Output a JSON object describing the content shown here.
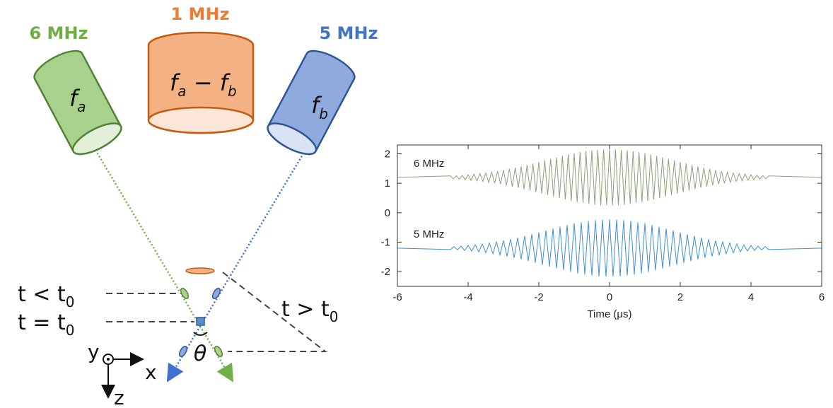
{
  "diagram": {
    "frequencies": {
      "a": "6 MHz",
      "diff": "1 MHz",
      "b": "5 MHz"
    },
    "transducers": {
      "a": {
        "symbol": "f",
        "sub": "a"
      },
      "diff": {
        "parts": [
          "f",
          "a",
          " − f",
          "b"
        ]
      },
      "b": {
        "symbol": "f",
        "sub": "b"
      }
    },
    "times": [
      {
        "text": "t < t",
        "sub": "0"
      },
      {
        "text": "t = t",
        "sub": "0"
      },
      {
        "text": "t > t",
        "sub": "0"
      }
    ],
    "angle": "θ",
    "axes": {
      "y": "y",
      "x": "x",
      "z": "z"
    }
  },
  "chart_data": {
    "type": "line",
    "xlabel": "Time (μs)",
    "xlim": [
      -6,
      6
    ],
    "xticks": [
      -6,
      -4,
      -2,
      0,
      2,
      4,
      6
    ],
    "ylim": [
      -2.5,
      2.3
    ],
    "yticks": [
      -2,
      -1,
      0,
      1,
      2
    ],
    "grid": false,
    "series": [
      {
        "name": "6 MHz",
        "color": "#8aa37a",
        "x": [
          -6,
          -4.5,
          -4.417,
          -4.333,
          -4.25,
          -4.167,
          -4.083,
          -4,
          -3.917,
          -3.833,
          -3.75,
          -3.667,
          -3.583,
          -3.5,
          -3.417,
          -3.333,
          -3.25,
          -3.167,
          -3.083,
          -3,
          -2.917,
          -2.833,
          -2.75,
          -2.667,
          -2.583,
          -2.5,
          -2.417,
          -2.333,
          -2.25,
          -2.167,
          -2.083,
          -2,
          -1.917,
          -1.833,
          -1.75,
          -1.667,
          -1.583,
          -1.5,
          -1.417,
          -1.333,
          -1.25,
          -1.167,
          -1.083,
          -1,
          -0.917,
          -0.833,
          -0.75,
          -0.667,
          -0.583,
          -0.5,
          -0.417,
          -0.333,
          -0.25,
          -0.167,
          -0.083,
          0,
          0.083,
          0.167,
          0.25,
          0.333,
          0.417,
          0.5,
          0.583,
          0.667,
          0.75,
          0.833,
          0.917,
          1,
          1.083,
          1.167,
          1.25,
          1.333,
          1.417,
          1.5,
          1.583,
          1.667,
          1.75,
          1.833,
          1.917,
          2,
          2.083,
          2.167,
          2.25,
          2.333,
          2.417,
          2.5,
          2.583,
          2.667,
          2.75,
          2.833,
          2.917,
          3,
          3.083,
          3.167,
          3.25,
          3.333,
          3.417,
          3.5,
          3.583,
          3.667,
          3.75,
          3.833,
          3.917,
          4,
          4.083,
          4.167,
          4.25,
          4.333,
          4.417,
          4.5,
          6
        ],
        "values": [
          1.2,
          1.25,
          1.15,
          1.26,
          1.14,
          1.27,
          1.12,
          1.29,
          1.1,
          1.31,
          1.08,
          1.33,
          1.06,
          1.35,
          1.03,
          1.38,
          1.0,
          1.41,
          0.97,
          1.45,
          0.93,
          1.49,
          0.89,
          1.53,
          0.85,
          1.57,
          0.8,
          1.62,
          0.75,
          1.67,
          0.7,
          1.72,
          0.65,
          1.78,
          0.6,
          1.83,
          0.55,
          1.88,
          0.5,
          1.93,
          0.45,
          1.98,
          0.4,
          2.02,
          0.36,
          2.06,
          0.33,
          2.09,
          0.3,
          2.12,
          0.27,
          2.13,
          0.26,
          2.15,
          0.25,
          2.15,
          0.25,
          2.15,
          0.26,
          2.13,
          0.27,
          2.12,
          0.3,
          2.09,
          0.33,
          2.06,
          0.36,
          2.02,
          0.4,
          1.98,
          0.45,
          1.93,
          0.5,
          1.88,
          0.55,
          1.83,
          0.6,
          1.78,
          0.65,
          1.72,
          0.7,
          1.67,
          0.75,
          1.62,
          0.8,
          1.57,
          0.85,
          1.53,
          0.89,
          1.49,
          0.93,
          1.45,
          0.97,
          1.41,
          1.0,
          1.38,
          1.03,
          1.35,
          1.06,
          1.33,
          1.08,
          1.31,
          1.1,
          1.29,
          1.12,
          1.27,
          1.14,
          1.26,
          1.15,
          1.25,
          1.2
        ]
      },
      {
        "name": "5 MHz",
        "color": "#3d8fd1",
        "x": [
          -6,
          -4.5,
          -4.4,
          -4.3,
          -4.2,
          -4.1,
          -4,
          -3.9,
          -3.8,
          -3.7,
          -3.6,
          -3.5,
          -3.4,
          -3.3,
          -3.2,
          -3.1,
          -3,
          -2.9,
          -2.8,
          -2.7,
          -2.6,
          -2.5,
          -2.4,
          -2.3,
          -2.2,
          -2.1,
          -2,
          -1.9,
          -1.8,
          -1.7,
          -1.6,
          -1.5,
          -1.4,
          -1.3,
          -1.2,
          -1.1,
          -1,
          -0.9,
          -0.8,
          -0.7,
          -0.6,
          -0.5,
          -0.4,
          -0.3,
          -0.2,
          -0.1,
          0,
          0.1,
          0.2,
          0.3,
          0.4,
          0.5,
          0.6,
          0.7,
          0.8,
          0.9,
          1,
          1.1,
          1.2,
          1.3,
          1.4,
          1.5,
          1.6,
          1.7,
          1.8,
          1.9,
          2,
          2.1,
          2.2,
          2.3,
          2.4,
          2.5,
          2.6,
          2.7,
          2.8,
          2.9,
          3,
          3.1,
          3.2,
          3.3,
          3.4,
          3.5,
          3.6,
          3.7,
          3.8,
          3.9,
          4,
          4.1,
          4.2,
          4.3,
          4.4,
          4.5,
          6
        ],
        "values": [
          -1.2,
          -1.25,
          -1.15,
          -1.26,
          -1.13,
          -1.28,
          -1.11,
          -1.3,
          -1.09,
          -1.33,
          -1.06,
          -1.36,
          -1.03,
          -1.39,
          -0.99,
          -1.43,
          -0.95,
          -1.48,
          -0.9,
          -1.53,
          -0.85,
          -1.58,
          -0.79,
          -1.64,
          -0.73,
          -1.7,
          -0.67,
          -1.77,
          -0.6,
          -1.83,
          -0.54,
          -1.89,
          -0.48,
          -1.95,
          -0.42,
          -2.01,
          -0.36,
          -2.06,
          -0.32,
          -2.1,
          -0.28,
          -2.13,
          -0.25,
          -2.16,
          -0.24,
          -2.17,
          -0.23,
          -2.17,
          -0.24,
          -2.16,
          -0.25,
          -2.13,
          -0.28,
          -2.1,
          -0.32,
          -2.06,
          -0.36,
          -2.01,
          -0.42,
          -1.95,
          -0.48,
          -1.89,
          -0.54,
          -1.83,
          -0.6,
          -1.77,
          -0.67,
          -1.7,
          -0.73,
          -1.64,
          -0.79,
          -1.58,
          -0.85,
          -1.53,
          -0.9,
          -1.48,
          -0.95,
          -1.43,
          -0.99,
          -1.39,
          -1.03,
          -1.36,
          -1.06,
          -1.33,
          -1.09,
          -1.3,
          -1.11,
          -1.28,
          -1.13,
          -1.26,
          -1.15,
          -1.25,
          -1.2
        ]
      }
    ]
  }
}
